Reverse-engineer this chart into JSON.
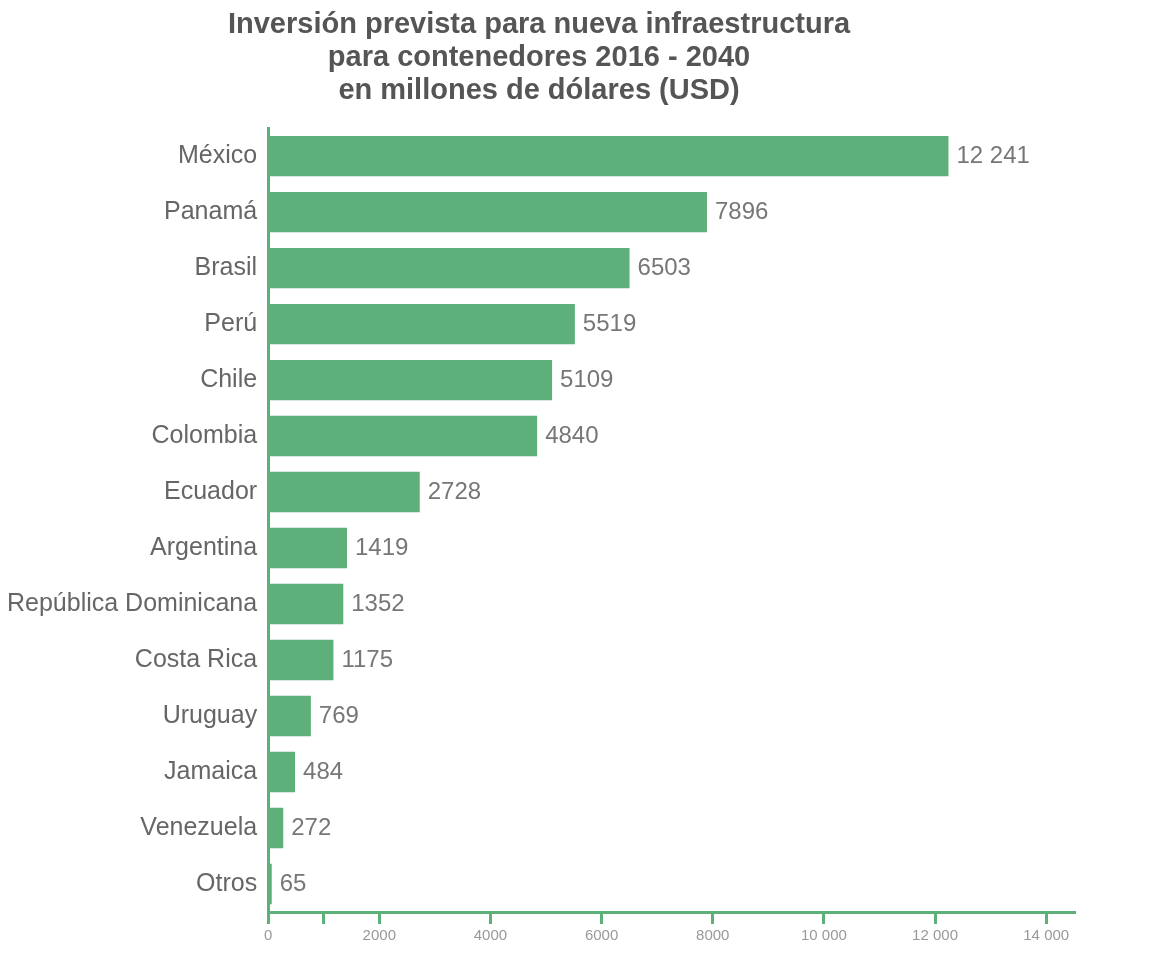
{
  "chart_data": {
    "type": "bar",
    "orientation": "horizontal",
    "title": "Inversión prevista para nueva infraestructura\npara contenedores 2016 - 2040\nen millones de dólares (USD)",
    "categories": [
      "México",
      "Panamá",
      "Brasil",
      "Perú",
      "Chile",
      "Colombia",
      "Ecuador",
      "Argentina",
      "República Dominicana",
      "Costa Rica",
      "Uruguay",
      "Jamaica",
      "Venezuela",
      "Otros"
    ],
    "values": [
      12241,
      7896,
      6503,
      5519,
      5109,
      4840,
      2728,
      1419,
      1352,
      1175,
      769,
      484,
      272,
      65
    ],
    "value_labels": [
      "12 241",
      "7896",
      "6503",
      "5519",
      "5109",
      "4840",
      "2728",
      "1419",
      "1352",
      "1175",
      "769",
      "484",
      "272",
      "65"
    ],
    "color": "#5db07a",
    "xlim": [
      0,
      14500
    ],
    "xticks": [
      0,
      {
        "value": 1000,
        "label": null
      },
      2000,
      4000,
      6000,
      8000,
      {
        "value": 10000,
        "label": "10 000"
      },
      {
        "value": 12000,
        "label": "12 000"
      },
      {
        "value": 14000,
        "label": "14 000"
      }
    ],
    "grid": false
  }
}
